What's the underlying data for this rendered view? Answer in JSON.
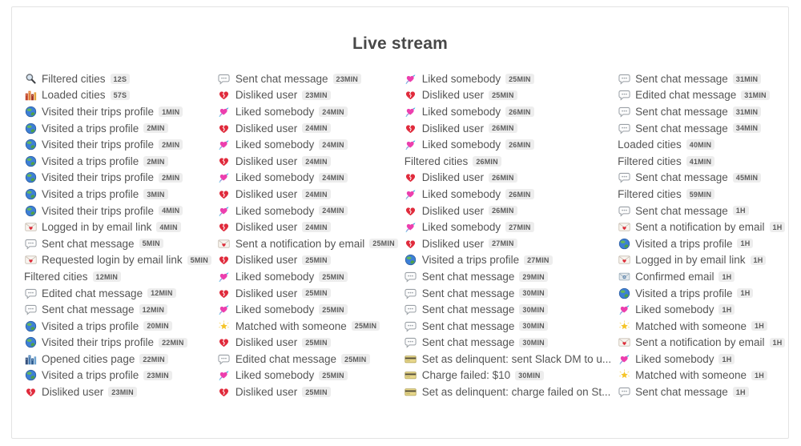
{
  "title": "Live stream",
  "badge_bg": "#ededed",
  "text_color": "#555555",
  "columns": [
    [
      {
        "icon": "search",
        "label": "Filtered cities",
        "time": "12s"
      },
      {
        "icon": "cityscape-dusk",
        "label": "Loaded cities",
        "time": "57s"
      },
      {
        "icon": "globe",
        "label": "Visited their trips profile",
        "time": "1min"
      },
      {
        "icon": "globe",
        "label": "Visited a trips profile",
        "time": "2min"
      },
      {
        "icon": "globe",
        "label": "Visited their trips profile",
        "time": "2min"
      },
      {
        "icon": "globe",
        "label": "Visited a trips profile",
        "time": "2min"
      },
      {
        "icon": "globe",
        "label": "Visited their trips profile",
        "time": "2min"
      },
      {
        "icon": "globe",
        "label": "Visited a trips profile",
        "time": "3min"
      },
      {
        "icon": "globe",
        "label": "Visited their trips profile",
        "time": "4min"
      },
      {
        "icon": "love-letter",
        "label": "Logged in by email link",
        "time": "4min"
      },
      {
        "icon": "speech-bubble",
        "label": "Sent chat message",
        "time": "5min"
      },
      {
        "icon": "love-letter",
        "label": "Requested login by email link",
        "time": "5min"
      },
      {
        "icon": null,
        "label": "Filtered cities",
        "time": "12min"
      },
      {
        "icon": "speech-bubble",
        "label": "Edited chat message",
        "time": "12min"
      },
      {
        "icon": "speech-bubble",
        "label": "Sent chat message",
        "time": "12min"
      },
      {
        "icon": "globe",
        "label": "Visited a trips profile",
        "time": "20min"
      },
      {
        "icon": "globe",
        "label": "Visited their trips profile",
        "time": "22min"
      },
      {
        "icon": "cityscape",
        "label": "Opened cities page",
        "time": "22min"
      },
      {
        "icon": "globe",
        "label": "Visited a trips profile",
        "time": "23min"
      },
      {
        "icon": "broken-heart",
        "label": "Disliked user",
        "time": "23min"
      }
    ],
    [
      {
        "icon": "speech-bubble",
        "label": "Sent chat message",
        "time": "23min"
      },
      {
        "icon": "broken-heart",
        "label": "Disliked user",
        "time": "23min"
      },
      {
        "icon": "heart-arrow",
        "label": "Liked somebody",
        "time": "24min"
      },
      {
        "icon": "broken-heart",
        "label": "Disliked user",
        "time": "24min"
      },
      {
        "icon": "heart-arrow",
        "label": "Liked somebody",
        "time": "24min"
      },
      {
        "icon": "broken-heart",
        "label": "Disliked user",
        "time": "24min"
      },
      {
        "icon": "heart-arrow",
        "label": "Liked somebody",
        "time": "24min"
      },
      {
        "icon": "broken-heart",
        "label": "Disliked user",
        "time": "24min"
      },
      {
        "icon": "heart-arrow",
        "label": "Liked somebody",
        "time": "24min"
      },
      {
        "icon": "broken-heart",
        "label": "Disliked user",
        "time": "24min"
      },
      {
        "icon": "love-letter",
        "label": "Sent a notification by email",
        "time": "25min"
      },
      {
        "icon": "broken-heart",
        "label": "Disliked user",
        "time": "25min"
      },
      {
        "icon": "heart-arrow",
        "label": "Liked somebody",
        "time": "25min"
      },
      {
        "icon": "broken-heart",
        "label": "Disliked user",
        "time": "25min"
      },
      {
        "icon": "heart-arrow",
        "label": "Liked somebody",
        "time": "25min"
      },
      {
        "icon": "glowing-star",
        "label": "Matched with someone",
        "time": "25min"
      },
      {
        "icon": "broken-heart",
        "label": "Disliked user",
        "time": "25min"
      },
      {
        "icon": "speech-bubble",
        "label": "Edited chat message",
        "time": "25min"
      },
      {
        "icon": "heart-arrow",
        "label": "Liked somebody",
        "time": "25min"
      },
      {
        "icon": "broken-heart",
        "label": "Disliked user",
        "time": "25min"
      }
    ],
    [
      {
        "icon": "heart-arrow",
        "label": "Liked somebody",
        "time": "25min"
      },
      {
        "icon": "broken-heart",
        "label": "Disliked user",
        "time": "25min"
      },
      {
        "icon": "heart-arrow",
        "label": "Liked somebody",
        "time": "26min"
      },
      {
        "icon": "broken-heart",
        "label": "Disliked user",
        "time": "26min"
      },
      {
        "icon": "heart-arrow",
        "label": "Liked somebody",
        "time": "26min"
      },
      {
        "icon": null,
        "label": "Filtered cities",
        "time": "26min"
      },
      {
        "icon": "broken-heart",
        "label": "Disliked user",
        "time": "26min"
      },
      {
        "icon": "heart-arrow",
        "label": "Liked somebody",
        "time": "26min"
      },
      {
        "icon": "broken-heart",
        "label": "Disliked user",
        "time": "26min"
      },
      {
        "icon": "heart-arrow",
        "label": "Liked somebody",
        "time": "27min"
      },
      {
        "icon": "broken-heart",
        "label": "Disliked user",
        "time": "27min"
      },
      {
        "icon": "globe",
        "label": "Visited a trips profile",
        "time": "27min"
      },
      {
        "icon": "speech-bubble",
        "label": "Sent chat message",
        "time": "29min"
      },
      {
        "icon": "speech-bubble",
        "label": "Sent chat message",
        "time": "30min"
      },
      {
        "icon": "speech-bubble",
        "label": "Sent chat message",
        "time": "30min"
      },
      {
        "icon": "speech-bubble",
        "label": "Sent chat message",
        "time": "30min"
      },
      {
        "icon": "speech-bubble",
        "label": "Sent chat message",
        "time": "30min"
      },
      {
        "icon": "credit-card",
        "label": "Set as delinquent: sent Slack DM to u...",
        "time": ""
      },
      {
        "icon": "credit-card",
        "label": "Charge failed: $10",
        "time": "30min"
      },
      {
        "icon": "credit-card",
        "label": "Set as delinquent: charge failed on St...",
        "time": ""
      }
    ],
    [
      {
        "icon": "speech-bubble",
        "label": "Sent chat message",
        "time": "31min"
      },
      {
        "icon": "speech-bubble",
        "label": "Edited chat message",
        "time": "31min"
      },
      {
        "icon": "speech-bubble",
        "label": "Sent chat message",
        "time": "31min"
      },
      {
        "icon": "speech-bubble",
        "label": "Sent chat message",
        "time": "34min"
      },
      {
        "icon": null,
        "label": "Loaded cities",
        "time": "40min"
      },
      {
        "icon": null,
        "label": "Filtered cities",
        "time": "41min"
      },
      {
        "icon": "speech-bubble",
        "label": "Sent chat message",
        "time": "45min"
      },
      {
        "icon": null,
        "label": "Filtered cities",
        "time": "59min"
      },
      {
        "icon": "speech-bubble",
        "label": "Sent chat message",
        "time": "1h"
      },
      {
        "icon": "love-letter",
        "label": "Sent a notification by email",
        "time": "1h"
      },
      {
        "icon": "globe",
        "label": "Visited a trips profile",
        "time": "1h"
      },
      {
        "icon": "love-letter",
        "label": "Logged in by email link",
        "time": "1h"
      },
      {
        "icon": "email",
        "label": "Confirmed email",
        "time": "1h"
      },
      {
        "icon": "globe",
        "label": "Visited a trips profile",
        "time": "1h"
      },
      {
        "icon": "heart-arrow",
        "label": "Liked somebody",
        "time": "1h"
      },
      {
        "icon": "glowing-star",
        "label": "Matched with someone",
        "time": "1h"
      },
      {
        "icon": "love-letter",
        "label": "Sent a notification by email",
        "time": "1h"
      },
      {
        "icon": "heart-arrow",
        "label": "Liked somebody",
        "time": "1h"
      },
      {
        "icon": "glowing-star",
        "label": "Matched with someone",
        "time": "1h"
      },
      {
        "icon": "speech-bubble",
        "label": "Sent chat message",
        "time": "1h"
      }
    ]
  ]
}
